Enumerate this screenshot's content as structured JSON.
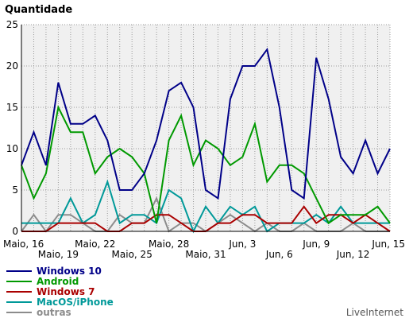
{
  "chart_data": {
    "type": "line",
    "title": "Quantidade",
    "credit": "LiveInternet",
    "ylim": [
      0,
      25
    ],
    "y_ticks": [
      0,
      5,
      10,
      15,
      20,
      25
    ],
    "grid": true,
    "legend_position": "bottom-left",
    "x_tick_rows": [
      [
        "Maio, 16",
        "Maio, 22",
        "Maio, 28",
        "Jun, 3",
        "Jun, 9",
        "Jun, 15"
      ],
      [
        "Maio, 19",
        "Maio, 25",
        "Maio, 31",
        "Jun, 6",
        "Jun, 12"
      ]
    ],
    "x": [
      "Maio, 16",
      "Maio, 17",
      "Maio, 18",
      "Maio, 19",
      "Maio, 20",
      "Maio, 21",
      "Maio, 22",
      "Maio, 23",
      "Maio, 24",
      "Maio, 25",
      "Maio, 26",
      "Maio, 27",
      "Maio, 28",
      "Maio, 29",
      "Maio, 30",
      "Maio, 31",
      "Jun, 1",
      "Jun, 2",
      "Jun, 3",
      "Jun, 4",
      "Jun, 5",
      "Jun, 6",
      "Jun, 7",
      "Jun, 8",
      "Jun, 9",
      "Jun, 10",
      "Jun, 11",
      "Jun, 12",
      "Jun, 13",
      "Jun, 14",
      "Jun, 15"
    ],
    "series": [
      {
        "name": "outras",
        "color": "#8c8c8c",
        "values": [
          0,
          2,
          0,
          2,
          2,
          1,
          0,
          0,
          2,
          1,
          1,
          4,
          0,
          1,
          1,
          0,
          1,
          2,
          1,
          0,
          1,
          0,
          0,
          1,
          0,
          0,
          0,
          1,
          0,
          0,
          0
        ]
      },
      {
        "name": "MacOS/iPhone",
        "color": "#009999",
        "values": [
          1,
          1,
          1,
          1,
          4,
          1,
          2,
          6,
          1,
          2,
          2,
          1,
          5,
          4,
          0,
          3,
          1,
          3,
          2,
          3,
          0,
          1,
          1,
          1,
          2,
          1,
          3,
          1,
          1,
          1,
          1
        ]
      },
      {
        "name": "Windows 7",
        "color": "#aa0000",
        "values": [
          0,
          0,
          0,
          1,
          1,
          1,
          1,
          0,
          0,
          1,
          1,
          2,
          2,
          1,
          0,
          0,
          1,
          1,
          2,
          2,
          1,
          1,
          1,
          3,
          1,
          2,
          2,
          1,
          2,
          1,
          0
        ]
      },
      {
        "name": "Android",
        "color": "#009900",
        "values": [
          8,
          4,
          7,
          15,
          12,
          12,
          7,
          9,
          10,
          9,
          7,
          1,
          11,
          14,
          8,
          11,
          10,
          8,
          9,
          13,
          6,
          8,
          8,
          7,
          4,
          1,
          2,
          2,
          2,
          3,
          1
        ]
      },
      {
        "name": "Windows 10",
        "color": "#000088",
        "values": [
          8,
          12,
          8,
          18,
          13,
          13,
          14,
          11,
          5,
          5,
          7,
          11,
          17,
          18,
          15,
          5,
          4,
          16,
          20,
          20,
          22,
          15,
          5,
          4,
          21,
          16,
          9,
          7,
          11,
          7,
          10
        ]
      }
    ],
    "legend": [
      {
        "name": "Windows 10",
        "color": "#000088"
      },
      {
        "name": "Android",
        "color": "#009900"
      },
      {
        "name": "Windows 7",
        "color": "#aa0000"
      },
      {
        "name": "MacOS/iPhone",
        "color": "#009999"
      },
      {
        "name": "outras",
        "color": "#8c8c8c"
      }
    ]
  }
}
